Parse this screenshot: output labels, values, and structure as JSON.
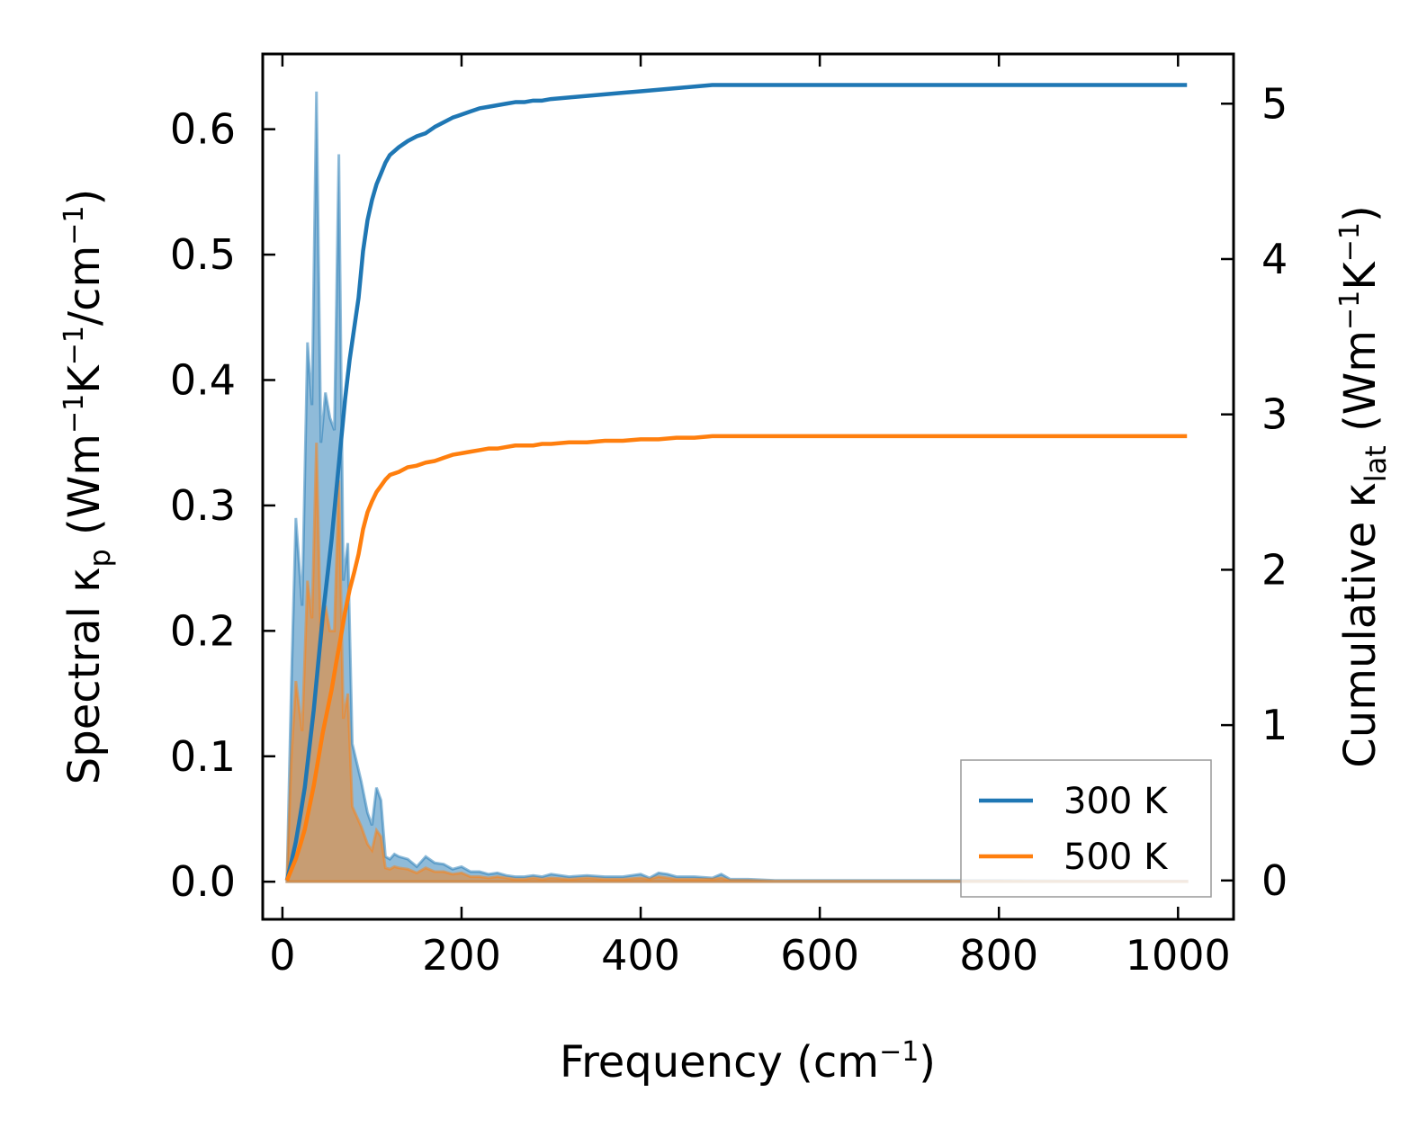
{
  "chart_data": {
    "type": "area",
    "xlabel": "Frequency (cm",
    "xlabel_sup": "−1",
    "xlabel_end": ")",
    "ylabel_left": {
      "pre": "Spectral κ",
      "sub": "p",
      "mid1": " (Wm",
      "sup1": "−1",
      "mid2": "K",
      "sup2": "−1",
      "mid3": "/cm",
      "sup3": "−1",
      "end": ")"
    },
    "ylabel_right": {
      "pre": "Cumulative κ",
      "sub": "lat",
      "mid1": " (Wm",
      "sup1": "−1",
      "mid2": "K",
      "sup2": "−1",
      "end": ")"
    },
    "xlim": [
      -22,
      1062
    ],
    "ylim_left": [
      -0.03,
      0.66
    ],
    "ylim_right": [
      -0.25,
      5.32
    ],
    "xticks": [
      0,
      200,
      400,
      600,
      800,
      1000
    ],
    "xtick_labels": [
      "0",
      "200",
      "400",
      "600",
      "800",
      "1000"
    ],
    "yticks_left": [
      0.0,
      0.1,
      0.2,
      0.3,
      0.4,
      0.5,
      0.6
    ],
    "ytick_labels_left": [
      "0.0",
      "0.1",
      "0.2",
      "0.3",
      "0.4",
      "0.5",
      "0.6"
    ],
    "yticks_right": [
      0,
      1,
      2,
      3,
      4,
      5
    ],
    "ytick_labels_right": [
      "0",
      "1",
      "2",
      "3",
      "4",
      "5"
    ],
    "legend_position": "lower-right",
    "series": [
      {
        "name": "300 K",
        "color": "#1f77b4",
        "spectral": {
          "x": [
            5,
            10,
            15,
            22,
            28,
            33,
            38,
            43,
            48,
            53,
            58,
            63,
            68,
            73,
            78,
            83,
            88,
            95,
            100,
            105,
            110,
            115,
            120,
            125,
            130,
            140,
            150,
            160,
            170,
            180,
            190,
            200,
            210,
            220,
            230,
            240,
            250,
            260,
            270,
            280,
            290,
            300,
            320,
            340,
            360,
            380,
            400,
            410,
            420,
            430,
            440,
            460,
            480,
            490,
            500,
            520,
            550,
            600,
            650,
            700,
            750,
            800,
            900,
            1010
          ],
          "y": [
            0.0,
            0.16,
            0.29,
            0.22,
            0.43,
            0.38,
            0.63,
            0.35,
            0.39,
            0.37,
            0.36,
            0.58,
            0.24,
            0.27,
            0.11,
            0.095,
            0.08,
            0.055,
            0.045,
            0.075,
            0.065,
            0.02,
            0.018,
            0.022,
            0.02,
            0.018,
            0.012,
            0.02,
            0.015,
            0.014,
            0.01,
            0.012,
            0.008,
            0.008,
            0.006,
            0.007,
            0.005,
            0.004,
            0.004,
            0.005,
            0.004,
            0.006,
            0.004,
            0.005,
            0.004,
            0.004,
            0.006,
            0.003,
            0.007,
            0.006,
            0.004,
            0.004,
            0.003,
            0.006,
            0.002,
            0.002,
            0.001,
            0.001,
            0.001,
            0.001,
            0.001,
            0.001,
            0.0005,
            0.0005
          ]
        },
        "cumulative": {
          "x": [
            5,
            10,
            15,
            20,
            25,
            30,
            35,
            40,
            45,
            50,
            55,
            60,
            65,
            70,
            75,
            80,
            85,
            90,
            95,
            100,
            105,
            110,
            115,
            120,
            130,
            140,
            150,
            160,
            170,
            180,
            190,
            200,
            210,
            220,
            230,
            240,
            250,
            260,
            270,
            280,
            290,
            300,
            320,
            340,
            360,
            380,
            400,
            420,
            440,
            460,
            480,
            500,
            520,
            550,
            600,
            650,
            700,
            750,
            800,
            900,
            1010
          ],
          "y": [
            0.0,
            0.12,
            0.25,
            0.42,
            0.6,
            0.85,
            1.1,
            1.4,
            1.7,
            1.95,
            2.2,
            2.5,
            2.8,
            3.1,
            3.35,
            3.55,
            3.75,
            4.05,
            4.25,
            4.38,
            4.48,
            4.55,
            4.62,
            4.67,
            4.72,
            4.76,
            4.79,
            4.81,
            4.85,
            4.88,
            4.91,
            4.93,
            4.95,
            4.97,
            4.98,
            4.99,
            5.0,
            5.01,
            5.01,
            5.02,
            5.02,
            5.03,
            5.04,
            5.05,
            5.06,
            5.07,
            5.08,
            5.09,
            5.1,
            5.11,
            5.12,
            5.12,
            5.12,
            5.12,
            5.12,
            5.12,
            5.12,
            5.12,
            5.12,
            5.12,
            5.12
          ]
        }
      },
      {
        "name": "500 K",
        "color": "#ff7f0e",
        "spectral": {
          "x": [
            5,
            10,
            15,
            22,
            28,
            33,
            38,
            43,
            48,
            53,
            58,
            63,
            68,
            73,
            78,
            83,
            88,
            95,
            100,
            105,
            110,
            115,
            120,
            125,
            130,
            140,
            150,
            160,
            170,
            180,
            190,
            200,
            210,
            220,
            230,
            240,
            250,
            260,
            270,
            280,
            290,
            300,
            320,
            340,
            360,
            380,
            400,
            410,
            420,
            430,
            440,
            460,
            480,
            490,
            500,
            520,
            550,
            600,
            650,
            700,
            750,
            800,
            900,
            1010
          ],
          "y": [
            0.0,
            0.1,
            0.16,
            0.12,
            0.24,
            0.21,
            0.35,
            0.19,
            0.22,
            0.2,
            0.2,
            0.32,
            0.13,
            0.15,
            0.06,
            0.052,
            0.044,
            0.03,
            0.025,
            0.041,
            0.036,
            0.011,
            0.01,
            0.012,
            0.011,
            0.01,
            0.007,
            0.011,
            0.008,
            0.008,
            0.006,
            0.007,
            0.004,
            0.004,
            0.003,
            0.004,
            0.003,
            0.002,
            0.002,
            0.003,
            0.002,
            0.003,
            0.002,
            0.003,
            0.002,
            0.002,
            0.003,
            0.002,
            0.004,
            0.003,
            0.002,
            0.002,
            0.002,
            0.003,
            0.001,
            0.001,
            0.0005,
            0.0005,
            0.0005,
            0.0005,
            0.0005,
            0.0005,
            0.0003,
            0.0003
          ]
        },
        "cumulative": {
          "x": [
            5,
            10,
            15,
            20,
            25,
            30,
            35,
            40,
            45,
            50,
            55,
            60,
            65,
            70,
            75,
            80,
            85,
            90,
            95,
            100,
            105,
            110,
            115,
            120,
            130,
            140,
            150,
            160,
            170,
            180,
            190,
            200,
            210,
            220,
            230,
            240,
            250,
            260,
            270,
            280,
            290,
            300,
            320,
            340,
            360,
            380,
            400,
            420,
            440,
            460,
            480,
            500,
            520,
            550,
            600,
            650,
            700,
            750,
            800,
            900,
            1010
          ],
          "y": [
            0.0,
            0.07,
            0.14,
            0.23,
            0.33,
            0.47,
            0.61,
            0.78,
            0.95,
            1.09,
            1.23,
            1.4,
            1.56,
            1.73,
            1.87,
            1.98,
            2.1,
            2.26,
            2.37,
            2.44,
            2.5,
            2.54,
            2.58,
            2.61,
            2.63,
            2.66,
            2.67,
            2.69,
            2.7,
            2.72,
            2.74,
            2.75,
            2.76,
            2.77,
            2.78,
            2.78,
            2.79,
            2.8,
            2.8,
            2.8,
            2.81,
            2.81,
            2.82,
            2.82,
            2.83,
            2.83,
            2.84,
            2.84,
            2.85,
            2.85,
            2.86,
            2.86,
            2.86,
            2.86,
            2.86,
            2.86,
            2.86,
            2.86,
            2.86,
            2.86,
            2.86
          ]
        }
      }
    ]
  }
}
